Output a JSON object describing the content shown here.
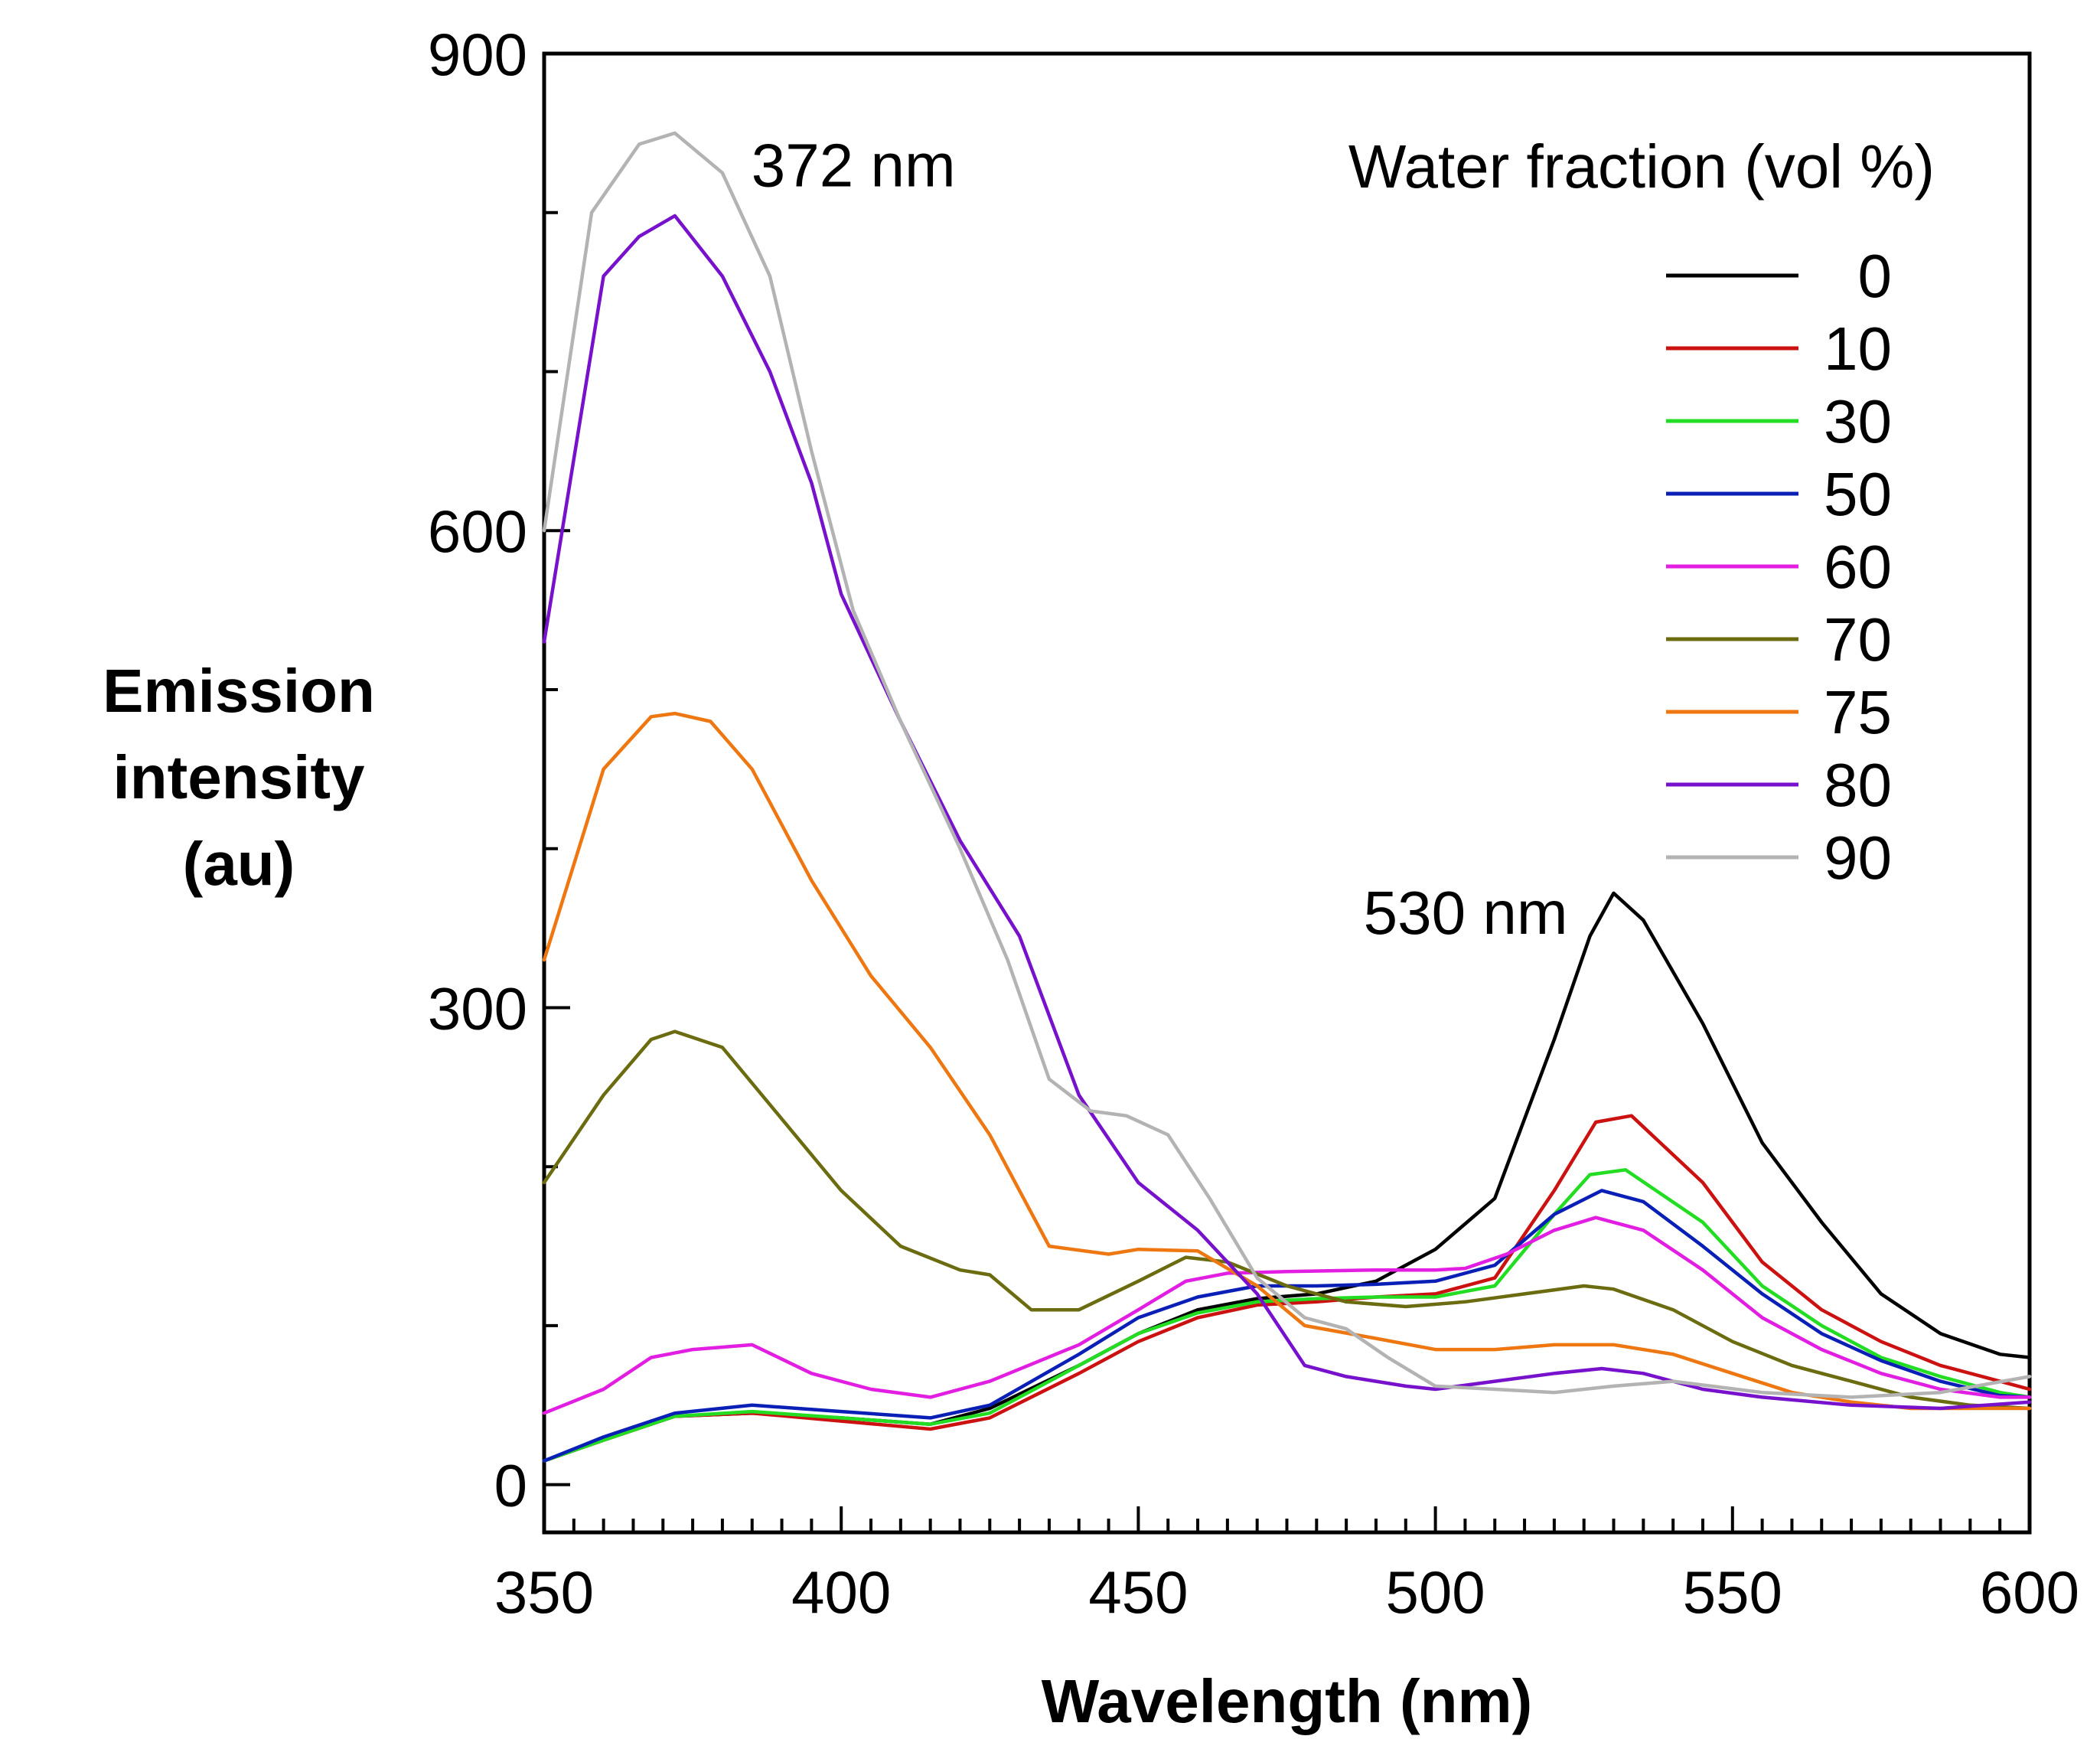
{
  "chart_data": {
    "type": "line",
    "xlabel": "Wavelength (nm)",
    "ylabel_lines": [
      "Emission",
      "intensity",
      "(au)"
    ],
    "xlim": [
      350,
      600
    ],
    "ylim": [
      -30,
      900
    ],
    "x_ticks": [
      350,
      400,
      450,
      500,
      550,
      600
    ],
    "y_ticks": [
      0,
      300,
      600,
      900
    ],
    "grid": false,
    "legend_title": "Water fraction (vol %)",
    "legend_position": "top-right",
    "annotations": [
      {
        "text": "372 nm",
        "x": 372,
        "y": 830
      },
      {
        "text": "530 nm",
        "x": 530,
        "y": 360
      }
    ],
    "series": [
      {
        "name": "0",
        "color": "#000000",
        "points": [
          [
            350,
            15
          ],
          [
            360,
            28
          ],
          [
            372,
            43
          ],
          [
            385,
            45
          ],
          [
            400,
            42
          ],
          [
            415,
            38
          ],
          [
            425,
            48
          ],
          [
            440,
            75
          ],
          [
            450,
            95
          ],
          [
            460,
            110
          ],
          [
            470,
            117
          ],
          [
            480,
            120
          ],
          [
            490,
            128
          ],
          [
            500,
            148
          ],
          [
            510,
            180
          ],
          [
            520,
            280
          ],
          [
            526,
            345
          ],
          [
            530,
            372
          ],
          [
            535,
            355
          ],
          [
            545,
            290
          ],
          [
            555,
            215
          ],
          [
            565,
            165
          ],
          [
            575,
            120
          ],
          [
            585,
            95
          ],
          [
            595,
            82
          ],
          [
            600,
            80
          ]
        ]
      },
      {
        "name": "10",
        "color": "#cc1111",
        "points": [
          [
            350,
            15
          ],
          [
            360,
            28
          ],
          [
            372,
            43
          ],
          [
            385,
            45
          ],
          [
            400,
            40
          ],
          [
            415,
            35
          ],
          [
            425,
            42
          ],
          [
            440,
            70
          ],
          [
            450,
            90
          ],
          [
            460,
            105
          ],
          [
            470,
            113
          ],
          [
            480,
            115
          ],
          [
            490,
            118
          ],
          [
            500,
            120
          ],
          [
            510,
            130
          ],
          [
            520,
            185
          ],
          [
            527,
            228
          ],
          [
            533,
            232
          ],
          [
            545,
            190
          ],
          [
            555,
            140
          ],
          [
            565,
            110
          ],
          [
            575,
            90
          ],
          [
            585,
            75
          ],
          [
            595,
            65
          ],
          [
            600,
            60
          ]
        ]
      },
      {
        "name": "30",
        "color": "#22dd22",
        "points": [
          [
            350,
            15
          ],
          [
            360,
            28
          ],
          [
            372,
            43
          ],
          [
            385,
            46
          ],
          [
            400,
            42
          ],
          [
            415,
            38
          ],
          [
            425,
            45
          ],
          [
            440,
            75
          ],
          [
            450,
            95
          ],
          [
            460,
            108
          ],
          [
            470,
            115
          ],
          [
            480,
            117
          ],
          [
            490,
            118
          ],
          [
            500,
            118
          ],
          [
            510,
            125
          ],
          [
            520,
            170
          ],
          [
            526,
            195
          ],
          [
            532,
            198
          ],
          [
            545,
            165
          ],
          [
            555,
            125
          ],
          [
            565,
            100
          ],
          [
            575,
            80
          ],
          [
            585,
            68
          ],
          [
            595,
            58
          ],
          [
            600,
            55
          ]
        ]
      },
      {
        "name": "50",
        "color": "#0a1fb5",
        "points": [
          [
            350,
            15
          ],
          [
            360,
            30
          ],
          [
            372,
            45
          ],
          [
            385,
            50
          ],
          [
            400,
            46
          ],
          [
            415,
            42
          ],
          [
            425,
            50
          ],
          [
            440,
            82
          ],
          [
            450,
            105
          ],
          [
            460,
            118
          ],
          [
            470,
            125
          ],
          [
            480,
            125
          ],
          [
            490,
            126
          ],
          [
            500,
            128
          ],
          [
            510,
            138
          ],
          [
            520,
            170
          ],
          [
            528,
            185
          ],
          [
            535,
            178
          ],
          [
            545,
            150
          ],
          [
            555,
            120
          ],
          [
            565,
            95
          ],
          [
            575,
            78
          ],
          [
            585,
            65
          ],
          [
            595,
            56
          ],
          [
            600,
            55
          ]
        ]
      },
      {
        "name": "60",
        "color": "#e11ee1",
        "points": [
          [
            350,
            45
          ],
          [
            360,
            60
          ],
          [
            368,
            80
          ],
          [
            375,
            85
          ],
          [
            385,
            88
          ],
          [
            395,
            70
          ],
          [
            405,
            60
          ],
          [
            415,
            55
          ],
          [
            425,
            65
          ],
          [
            440,
            88
          ],
          [
            450,
            110
          ],
          [
            458,
            128
          ],
          [
            465,
            133
          ],
          [
            475,
            134
          ],
          [
            490,
            135
          ],
          [
            500,
            135
          ],
          [
            505,
            136
          ],
          [
            512,
            145
          ],
          [
            520,
            160
          ],
          [
            527,
            168
          ],
          [
            535,
            160
          ],
          [
            545,
            135
          ],
          [
            555,
            105
          ],
          [
            565,
            85
          ],
          [
            575,
            70
          ],
          [
            585,
            60
          ],
          [
            595,
            55
          ],
          [
            600,
            55
          ]
        ]
      },
      {
        "name": "70",
        "color": "#6b6b10",
        "points": [
          [
            350,
            190
          ],
          [
            360,
            245
          ],
          [
            368,
            280
          ],
          [
            372,
            285
          ],
          [
            380,
            275
          ],
          [
            390,
            230
          ],
          [
            400,
            185
          ],
          [
            410,
            150
          ],
          [
            420,
            135
          ],
          [
            425,
            132
          ],
          [
            432,
            110
          ],
          [
            440,
            110
          ],
          [
            450,
            128
          ],
          [
            458,
            143
          ],
          [
            465,
            140
          ],
          [
            475,
            125
          ],
          [
            485,
            115
          ],
          [
            495,
            112
          ],
          [
            505,
            115
          ],
          [
            515,
            120
          ],
          [
            525,
            125
          ],
          [
            530,
            123
          ],
          [
            540,
            110
          ],
          [
            550,
            90
          ],
          [
            560,
            75
          ],
          [
            570,
            65
          ],
          [
            580,
            55
          ],
          [
            590,
            50
          ],
          [
            600,
            48
          ]
        ]
      },
      {
        "name": "75",
        "color": "#ee7711",
        "points": [
          [
            350,
            330
          ],
          [
            360,
            450
          ],
          [
            368,
            483
          ],
          [
            372,
            485
          ],
          [
            378,
            480
          ],
          [
            385,
            450
          ],
          [
            395,
            380
          ],
          [
            405,
            320
          ],
          [
            415,
            275
          ],
          [
            425,
            220
          ],
          [
            430,
            185
          ],
          [
            435,
            150
          ],
          [
            445,
            145
          ],
          [
            450,
            148
          ],
          [
            460,
            147
          ],
          [
            470,
            125
          ],
          [
            478,
            100
          ],
          [
            490,
            92
          ],
          [
            500,
            85
          ],
          [
            510,
            85
          ],
          [
            520,
            88
          ],
          [
            530,
            88
          ],
          [
            540,
            82
          ],
          [
            550,
            70
          ],
          [
            560,
            58
          ],
          [
            570,
            52
          ],
          [
            580,
            48
          ],
          [
            600,
            48
          ]
        ]
      },
      {
        "name": "80",
        "color": "#7711cc",
        "points": [
          [
            350,
            530
          ],
          [
            360,
            760
          ],
          [
            366,
            785
          ],
          [
            372,
            798
          ],
          [
            380,
            760
          ],
          [
            388,
            700
          ],
          [
            395,
            630
          ],
          [
            400,
            560
          ],
          [
            410,
            480
          ],
          [
            420,
            405
          ],
          [
            430,
            345
          ],
          [
            440,
            245
          ],
          [
            450,
            190
          ],
          [
            460,
            160
          ],
          [
            470,
            120
          ],
          [
            478,
            75
          ],
          [
            485,
            68
          ],
          [
            495,
            62
          ],
          [
            500,
            60
          ],
          [
            510,
            65
          ],
          [
            520,
            70
          ],
          [
            528,
            73
          ],
          [
            535,
            70
          ],
          [
            545,
            60
          ],
          [
            555,
            55
          ],
          [
            570,
            50
          ],
          [
            585,
            48
          ],
          [
            600,
            52
          ]
        ]
      },
      {
        "name": "90",
        "color": "#b3b3b3",
        "points": [
          [
            350,
            600
          ],
          [
            358,
            800
          ],
          [
            366,
            843
          ],
          [
            372,
            850
          ],
          [
            380,
            825
          ],
          [
            388,
            760
          ],
          [
            395,
            650
          ],
          [
            402,
            550
          ],
          [
            410,
            480
          ],
          [
            420,
            400
          ],
          [
            428,
            330
          ],
          [
            435,
            255
          ],
          [
            442,
            235
          ],
          [
            448,
            232
          ],
          [
            455,
            220
          ],
          [
            462,
            180
          ],
          [
            470,
            130
          ],
          [
            478,
            105
          ],
          [
            485,
            98
          ],
          [
            492,
            80
          ],
          [
            500,
            62
          ],
          [
            510,
            60
          ],
          [
            520,
            58
          ],
          [
            530,
            62
          ],
          [
            540,
            65
          ],
          [
            555,
            58
          ],
          [
            570,
            55
          ],
          [
            585,
            58
          ],
          [
            600,
            68
          ]
        ]
      }
    ]
  }
}
